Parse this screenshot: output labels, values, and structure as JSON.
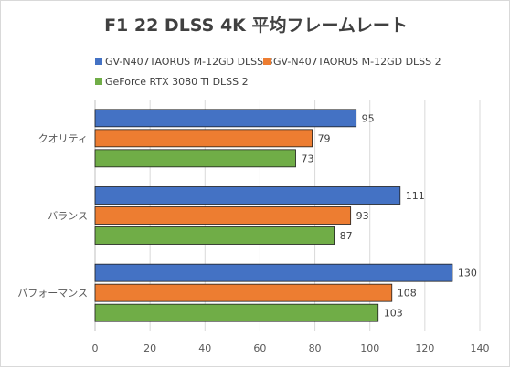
{
  "chart_data": {
    "type": "bar",
    "orientation": "horizontal",
    "title": "F1 22 DLSS 4K 平均フレームレート",
    "categories": [
      "クオリティ",
      "バランス",
      "パフォーマンス"
    ],
    "series": [
      {
        "name": "GV-N407TAORUS M-12GD DLSS 3",
        "color": "#4472c4",
        "values": [
          95,
          111,
          130
        ]
      },
      {
        "name": "GV-N407TAORUS M-12GD DLSS 2",
        "color": "#ed7d31",
        "values": [
          79,
          93,
          108
        ]
      },
      {
        "name": "GeForce RTX 3080 Ti DLSS 2",
        "color": "#70ad47",
        "values": [
          73,
          87,
          103
        ]
      }
    ],
    "xlim": [
      0,
      140
    ],
    "xticks": [
      "0",
      "20",
      "40",
      "60",
      "80",
      "100",
      "120",
      "140"
    ],
    "grid": true,
    "legend_position": "top"
  }
}
